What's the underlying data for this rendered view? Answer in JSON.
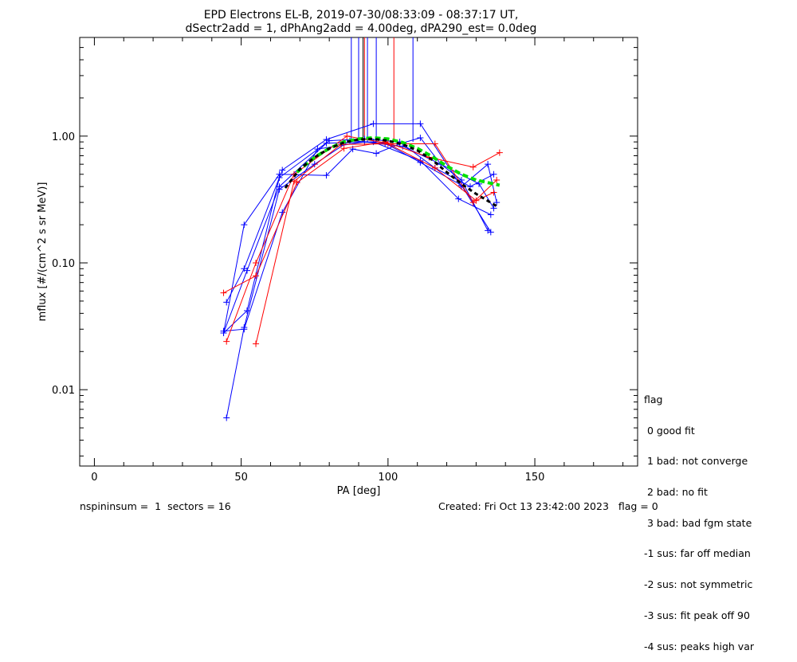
{
  "chart_data": {
    "type": "scatter",
    "title": "EPD Electrons EL-B, 2019-07-30/08:33:09 - 08:37:17 UT,",
    "subtitle": "dSectr2add = 1, dPhAng2add = 4.00deg, dPA290_est=   0.0deg",
    "xlabel": "PA [deg]",
    "ylabel": "mflux [#/(cm^2 s sr MeV)]",
    "xlim": [
      -5,
      185
    ],
    "ylim": [
      0.0025,
      6
    ],
    "yscale": "log",
    "xticks": [
      {
        "v": 0,
        "label": "0"
      },
      {
        "v": 50,
        "label": "50"
      },
      {
        "v": 100,
        "label": "100"
      },
      {
        "v": 150,
        "label": "150"
      }
    ],
    "yticks": [
      {
        "v": 0.01,
        "label": "0.01"
      },
      {
        "v": 0.1,
        "label": "0.10"
      },
      {
        "v": 1.0,
        "label": "1.00"
      }
    ],
    "colors": {
      "blue": "#0000ff",
      "red": "#ff0000",
      "fit": "#000000",
      "median": "#00e000"
    },
    "series": [
      {
        "color": "blue",
        "points": [
          [
            44,
            0.028
          ],
          [
            51,
            0.2
          ],
          [
            63,
            0.5
          ],
          [
            79,
            0.49
          ],
          [
            88,
            0.79
          ],
          [
            96,
            0.73
          ],
          [
            104,
            0.87
          ],
          [
            111,
            0.97
          ],
          [
            118,
            0.6
          ],
          [
            125,
            0.45
          ],
          [
            134,
            0.18
          ]
        ]
      },
      {
        "color": "blue",
        "points": [
          [
            45,
            0.049
          ],
          [
            51,
            0.09
          ],
          [
            64,
            0.54
          ],
          [
            79,
            0.94
          ],
          [
            95,
            1.25
          ],
          [
            111,
            1.25
          ],
          [
            125,
            0.4
          ],
          [
            134,
            0.6
          ],
          [
            137,
            0.3
          ]
        ]
      },
      {
        "color": "blue",
        "points": [
          [
            44,
            0.028
          ],
          [
            52,
            0.087
          ],
          [
            63,
            0.4
          ],
          [
            79,
            0.88
          ],
          [
            95,
            0.9
          ],
          [
            111,
            0.64
          ],
          [
            124,
            0.32
          ],
          [
            135,
            0.24
          ]
        ]
      },
      {
        "color": "blue",
        "points": [
          [
            45,
            0.006
          ],
          [
            51,
            0.031
          ],
          [
            63,
            0.38
          ],
          [
            75,
            0.6
          ],
          [
            87,
            0.92
          ],
          [
            99,
            0.88
          ],
          [
            111,
            0.62
          ],
          [
            125,
            0.41
          ],
          [
            135,
            0.175
          ]
        ]
      },
      {
        "color": "blue",
        "points": [
          [
            44,
            0.029
          ],
          [
            51,
            0.03
          ],
          [
            64,
            0.25
          ],
          [
            76,
            0.79
          ],
          [
            92,
            0.9
          ],
          [
            105,
            0.83
          ],
          [
            118,
            0.6
          ],
          [
            131,
            0.42
          ],
          [
            136,
            0.27
          ]
        ]
      },
      {
        "color": "blue",
        "points": [
          [
            44,
            0.028
          ],
          [
            52,
            0.042
          ],
          [
            63,
            0.47
          ],
          [
            80,
            0.92
          ],
          [
            92,
            0.95
          ],
          [
            104,
            0.9
          ],
          [
            116,
            0.56
          ],
          [
            128,
            0.4
          ],
          [
            136,
            0.5
          ]
        ]
      },
      {
        "color": "red",
        "points": [
          [
            44,
            0.058
          ],
          [
            55,
            0.079
          ],
          [
            69,
            0.43
          ],
          [
            85,
            0.8
          ],
          [
            99,
            0.9
          ],
          [
            114,
            0.68
          ],
          [
            129,
            0.57
          ],
          [
            138,
            0.74
          ]
        ]
      },
      {
        "color": "red",
        "points": [
          [
            45,
            0.024
          ],
          [
            55,
            0.1
          ],
          [
            68,
            0.5
          ],
          [
            86,
            1.0
          ],
          [
            101,
            0.87
          ],
          [
            116,
            0.87
          ],
          [
            129,
            0.3
          ],
          [
            137,
            0.45
          ]
        ]
      },
      {
        "color": "red",
        "points": [
          [
            55,
            0.023
          ],
          [
            68,
            0.44
          ],
          [
            84,
            0.86
          ],
          [
            100,
            0.87
          ],
          [
            116,
            0.56
          ],
          [
            130,
            0.31
          ],
          [
            136,
            0.36
          ]
        ]
      }
    ],
    "vlines": [
      {
        "x": 87.5,
        "color": "blue"
      },
      {
        "x": 90.0,
        "color": "blue"
      },
      {
        "x": 91.5,
        "color": "black"
      },
      {
        "x": 92.0,
        "color": "red"
      },
      {
        "x": 93.0,
        "color": "blue"
      },
      {
        "x": 96.0,
        "color": "blue"
      },
      {
        "x": 102.0,
        "color": "red"
      },
      {
        "x": 108.5,
        "color": "blue"
      }
    ],
    "fit_curve": {
      "x": [
        65,
        70,
        75,
        80,
        85,
        90,
        95,
        100,
        105,
        110,
        115,
        120,
        125,
        130,
        137
      ],
      "y": [
        0.39,
        0.55,
        0.68,
        0.8,
        0.89,
        0.94,
        0.95,
        0.92,
        0.86,
        0.77,
        0.65,
        0.52,
        0.42,
        0.35,
        0.28
      ]
    },
    "median_curve": {
      "x": [
        69,
        75,
        80,
        85,
        90,
        95,
        100,
        105,
        110,
        115,
        120,
        125,
        130,
        138
      ],
      "y": [
        0.52,
        0.68,
        0.8,
        0.9,
        0.95,
        0.97,
        0.95,
        0.89,
        0.8,
        0.69,
        0.58,
        0.5,
        0.45,
        0.41
      ]
    },
    "legend_placement": "right"
  },
  "legend": {
    "title": "flag",
    "items": [
      " 0 good fit",
      " 1 bad: not converge",
      " 2 bad: no fit",
      " 3 bad: bad fgm state",
      "-1 sus: far off median",
      "-2 sus: not symmetric",
      "-3 sus: fit peak off 90",
      "-4 sus: peaks high var"
    ]
  },
  "footer": {
    "left": "nspininsum =  1  sectors = 16",
    "right": "Created: Fri Oct 13 23:42:00 2023   flag = 0"
  }
}
